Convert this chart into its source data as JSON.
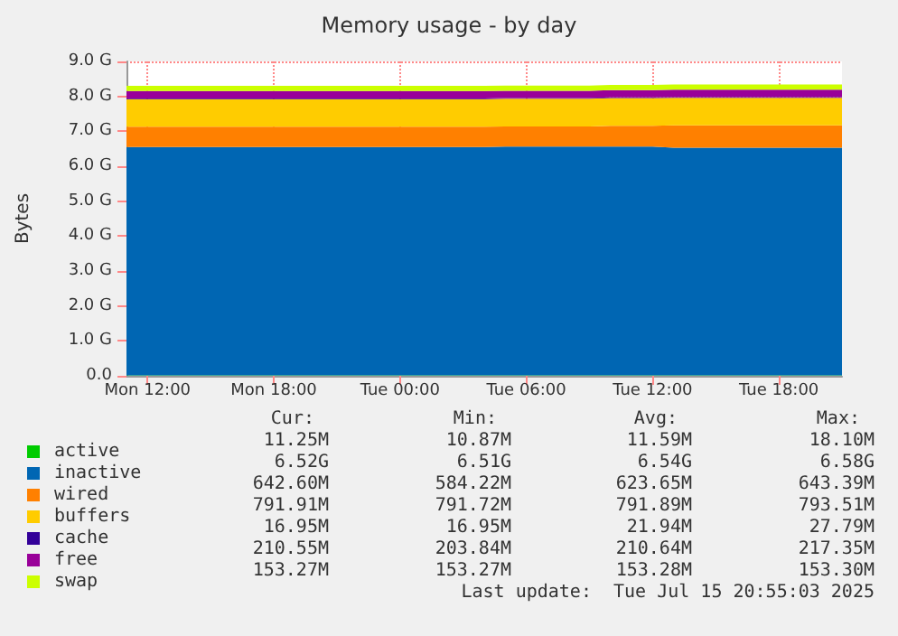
{
  "chart_data": {
    "type": "area",
    "title": "Memory usage - by day",
    "ylabel": "Bytes",
    "stacked": true,
    "grid": true,
    "legend": "bottom left",
    "categories": [
      null,
      "Mon 12:00",
      null,
      null,
      null,
      null,
      null,
      "Mon 18:00",
      null,
      null,
      null,
      null,
      null,
      "Tue 00:00",
      null,
      null,
      null,
      null,
      null,
      "Tue 06:00",
      null,
      null,
      null,
      null,
      null,
      "Tue 12:00",
      null,
      null,
      null,
      null,
      null,
      "Tue 18:00",
      null,
      null,
      null
    ],
    "ylim": [
      0,
      9
    ],
    "yticks": [
      {
        "value": 0,
        "label": "0.0"
      },
      {
        "value": 1,
        "label": "1.0 G"
      },
      {
        "value": 2,
        "label": "2.0 G"
      },
      {
        "value": 3,
        "label": "3.0 G"
      },
      {
        "value": 4,
        "label": "4.0 G"
      },
      {
        "value": 5,
        "label": "5.0 G"
      },
      {
        "value": 6,
        "label": "6.0 G"
      },
      {
        "value": 7,
        "label": "7.0 G"
      },
      {
        "value": 8,
        "label": "8.0 G"
      },
      {
        "value": 9,
        "label": "9.0 G"
      }
    ],
    "series": [
      {
        "name": "active",
        "color": "#00cc00",
        "values": [
          0.01,
          0.01,
          0.01,
          0.01,
          0.01,
          0.01,
          0.01,
          0.01,
          0.01,
          0.01,
          0.01,
          0.01,
          0.01,
          0.01,
          0.01,
          0.01,
          0.01,
          0.01,
          0.01,
          0.01,
          0.01,
          0.01,
          0.01,
          0.01,
          0.01,
          0.01,
          0.01,
          0.01,
          0.01,
          0.01,
          0.01,
          0.01,
          0.01,
          0.01,
          0.01
        ]
      },
      {
        "name": "inactive",
        "color": "#0066b3",
        "values": [
          6.54,
          6.54,
          6.54,
          6.54,
          6.54,
          6.54,
          6.54,
          6.54,
          6.54,
          6.54,
          6.54,
          6.54,
          6.54,
          6.54,
          6.54,
          6.54,
          6.54,
          6.54,
          6.55,
          6.55,
          6.55,
          6.55,
          6.55,
          6.55,
          6.55,
          6.55,
          6.52,
          6.52,
          6.52,
          6.52,
          6.52,
          6.52,
          6.52,
          6.52,
          6.52
        ]
      },
      {
        "name": "wired",
        "color": "#ff8000",
        "values": [
          0.58,
          0.58,
          0.58,
          0.58,
          0.58,
          0.58,
          0.58,
          0.58,
          0.58,
          0.58,
          0.58,
          0.58,
          0.58,
          0.58,
          0.58,
          0.58,
          0.58,
          0.58,
          0.58,
          0.58,
          0.58,
          0.58,
          0.58,
          0.6,
          0.6,
          0.6,
          0.64,
          0.64,
          0.64,
          0.64,
          0.64,
          0.64,
          0.64,
          0.64,
          0.64
        ]
      },
      {
        "name": "buffers",
        "color": "#ffcc00",
        "values": [
          0.79,
          0.79,
          0.79,
          0.79,
          0.79,
          0.79,
          0.79,
          0.79,
          0.79,
          0.79,
          0.79,
          0.79,
          0.79,
          0.79,
          0.79,
          0.79,
          0.79,
          0.79,
          0.79,
          0.79,
          0.79,
          0.79,
          0.79,
          0.79,
          0.79,
          0.79,
          0.79,
          0.79,
          0.79,
          0.79,
          0.79,
          0.79,
          0.79,
          0.79,
          0.79
        ]
      },
      {
        "name": "cache",
        "color": "#330099",
        "values": [
          0.02,
          0.02,
          0.02,
          0.02,
          0.02,
          0.02,
          0.02,
          0.02,
          0.02,
          0.02,
          0.02,
          0.02,
          0.02,
          0.02,
          0.02,
          0.02,
          0.02,
          0.02,
          0.02,
          0.02,
          0.02,
          0.02,
          0.02,
          0.02,
          0.02,
          0.02,
          0.02,
          0.02,
          0.02,
          0.02,
          0.02,
          0.02,
          0.02,
          0.02,
          0.02
        ]
      },
      {
        "name": "free",
        "color": "#990099",
        "values": [
          0.21,
          0.21,
          0.21,
          0.21,
          0.21,
          0.21,
          0.21,
          0.21,
          0.21,
          0.21,
          0.21,
          0.21,
          0.21,
          0.21,
          0.21,
          0.21,
          0.21,
          0.21,
          0.21,
          0.21,
          0.21,
          0.21,
          0.21,
          0.21,
          0.21,
          0.21,
          0.21,
          0.21,
          0.21,
          0.21,
          0.21,
          0.21,
          0.21,
          0.21,
          0.21
        ]
      },
      {
        "name": "swap",
        "color": "#ccff00",
        "values": [
          0.15,
          0.15,
          0.15,
          0.15,
          0.15,
          0.15,
          0.15,
          0.15,
          0.15,
          0.15,
          0.15,
          0.15,
          0.15,
          0.15,
          0.15,
          0.15,
          0.15,
          0.15,
          0.15,
          0.15,
          0.15,
          0.15,
          0.15,
          0.15,
          0.15,
          0.15,
          0.15,
          0.15,
          0.15,
          0.15,
          0.15,
          0.15,
          0.15,
          0.15,
          0.15
        ]
      }
    ],
    "annotations": [
      "Cur:",
      "Min:",
      "Avg:",
      "Max:",
      "11.25M",
      "10.87M",
      "11.59M",
      "18.10M",
      "6.52G",
      "6.51G",
      "6.54G",
      "6.58G",
      "642.60M",
      "584.22M",
      "623.65M",
      "643.39M",
      "791.91M",
      "791.72M",
      "791.89M",
      "793.51M",
      "16.95M",
      "16.95M",
      "21.94M",
      "27.79M",
      "210.55M",
      "203.84M",
      "210.64M",
      "217.35M",
      "153.27M",
      "153.27M",
      "153.28M",
      "153.30M",
      "Last update:  Tue Jul 15 20:55:03 2025"
    ]
  }
}
